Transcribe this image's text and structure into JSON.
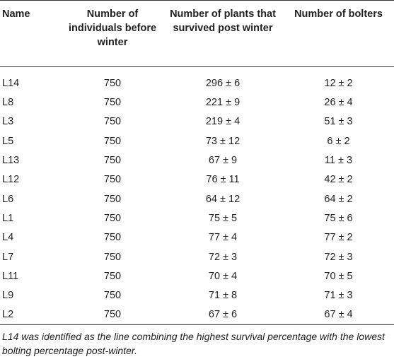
{
  "table": {
    "headers": [
      "Name",
      "Number of individuals before winter",
      "Number of plants that survived post winter",
      "Number of bolters"
    ],
    "rows": [
      [
        "L14",
        "750",
        "296 ± 6",
        "12 ± 2"
      ],
      [
        "L8",
        "750",
        "221 ± 9",
        "26 ± 4"
      ],
      [
        "L3",
        "750",
        "219 ± 4",
        "51 ± 3"
      ],
      [
        "L5",
        "750",
        "73 ± 12",
        "6 ± 2"
      ],
      [
        "L13",
        "750",
        "67 ± 9",
        "11 ± 3"
      ],
      [
        "L12",
        "750",
        "76 ± 11",
        "42 ± 2"
      ],
      [
        "L6",
        "750",
        "64 ± 12",
        "64 ± 2"
      ],
      [
        "L1",
        "750",
        "75 ± 5",
        "75 ± 6"
      ],
      [
        "L4",
        "750",
        "77 ± 4",
        "77 ± 2"
      ],
      [
        "L7",
        "750",
        "72 ± 3",
        "72 ± 3"
      ],
      [
        "L11",
        "750",
        "70 ± 4",
        "70 ± 5"
      ],
      [
        "L9",
        "750",
        "71 ± 8",
        "71 ± 3"
      ],
      [
        "L2",
        "750",
        "67 ± 6",
        "67 ± 4"
      ]
    ]
  },
  "footnote": "L14 was identified as the line combining the highest survival percentage with the lowest bolting percentage post-winter."
}
